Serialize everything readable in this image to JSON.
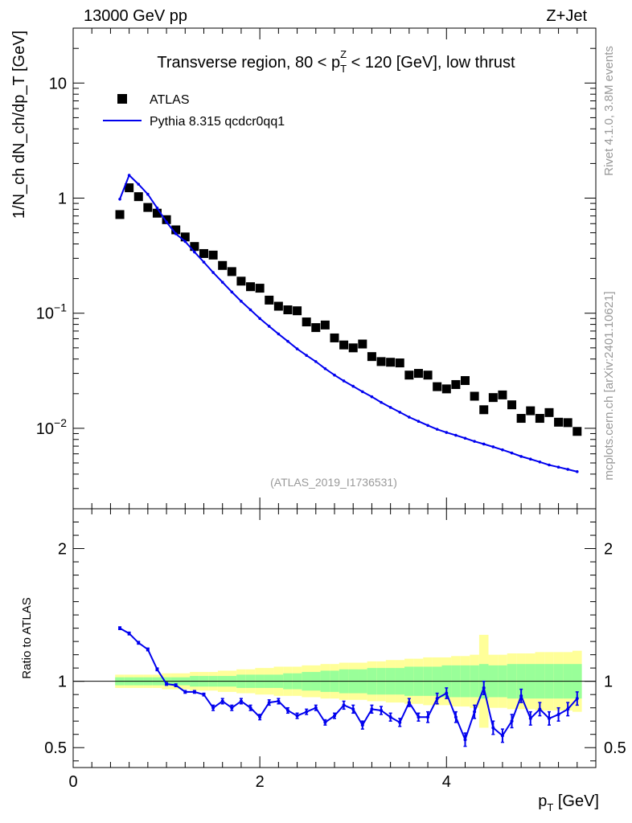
{
  "header": {
    "energy": "13000 GeV pp",
    "process": "Z+Jet"
  },
  "side_labels": {
    "rivet": "Rivet 4.1.0,  3.8M events",
    "mcplots": "mcplots.cern.ch [arXiv:2401.10621]"
  },
  "colors": {
    "data": "#000000",
    "mc": "#0000ee",
    "band_inner": "#99ff99",
    "band_outer": "#ffff99",
    "watermark": "#999999"
  },
  "chart_data": [
    {
      "type": "scatter",
      "panel": "main",
      "title": "Transverse region, 80 < p_T^Z < 120 [GeV], low thrust",
      "title_parts": {
        "pre": "Transverse region, 80 < p",
        "sub": "T",
        "sup": "Z",
        "post": " < 120 [GeV], low thrust"
      },
      "watermark": "(ATLAS_2019_I1736531)",
      "ylabel": "1/N_ch dN_ch/dp_T [GeV]",
      "yscale": "log",
      "ylim": [
        0.002,
        30
      ],
      "xlim": [
        0,
        5.6
      ],
      "y_ticks": [
        {
          "value": 0.01,
          "base": "10",
          "exp": "−2"
        },
        {
          "value": 0.1,
          "base": "10",
          "exp": "−1"
        },
        {
          "value": 1,
          "label": "1"
        },
        {
          "value": 10,
          "label": "10"
        }
      ],
      "legend": {
        "placement": "top-left",
        "entries": [
          "ATLAS",
          "Pythia 8.315 qcdcr0qq1"
        ]
      },
      "x": [
        0.5,
        0.6,
        0.7,
        0.8,
        0.9,
        1.0,
        1.1,
        1.2,
        1.3,
        1.4,
        1.5,
        1.6,
        1.7,
        1.8,
        1.9,
        2.0,
        2.1,
        2.2,
        2.3,
        2.4,
        2.5,
        2.6,
        2.7,
        2.8,
        2.9,
        3.0,
        3.1,
        3.2,
        3.3,
        3.4,
        3.5,
        3.6,
        3.7,
        3.8,
        3.9,
        4.0,
        4.1,
        4.2,
        4.3,
        4.4,
        4.5,
        4.6,
        4.7,
        4.8,
        4.9,
        5.0,
        5.1,
        5.2,
        5.3,
        5.4
      ],
      "series": [
        {
          "name": "ATLAS",
          "style": "markers",
          "values": [
            0.72,
            1.23,
            1.03,
            0.83,
            0.74,
            0.65,
            0.53,
            0.46,
            0.38,
            0.33,
            0.32,
            0.26,
            0.23,
            0.19,
            0.17,
            0.165,
            0.13,
            0.115,
            0.107,
            0.105,
            0.084,
            0.075,
            0.079,
            0.061,
            0.053,
            0.05,
            0.054,
            0.042,
            0.038,
            0.0375,
            0.037,
            0.029,
            0.03,
            0.029,
            0.023,
            0.022,
            0.024,
            0.026,
            0.019,
            0.0145,
            0.0185,
            0.0195,
            0.016,
            0.0122,
            0.0142,
            0.0122,
            0.0137,
            0.0113,
            0.0112,
            0.0094
          ]
        },
        {
          "name": "Pythia 8.315 qcdcr0qq1",
          "style": "line",
          "values": [
            0.98,
            1.58,
            1.32,
            1.08,
            0.82,
            0.62,
            0.49,
            0.42,
            0.34,
            0.278,
            0.226,
            0.186,
            0.153,
            0.127,
            0.107,
            0.09,
            0.077,
            0.066,
            0.057,
            0.049,
            0.043,
            0.038,
            0.033,
            0.029,
            0.0258,
            0.0232,
            0.0208,
            0.0188,
            0.0168,
            0.0152,
            0.0138,
            0.0125,
            0.0115,
            0.0106,
            0.0098,
            0.0092,
            0.0087,
            0.0082,
            0.0077,
            0.0073,
            0.0069,
            0.0065,
            0.0061,
            0.0057,
            0.0054,
            0.0051,
            0.0048,
            0.0046,
            0.0044,
            0.0042
          ]
        }
      ]
    },
    {
      "type": "line",
      "panel": "ratio",
      "ylabel": "Ratio to ATLAS",
      "xlabel": "p_T [GeV]",
      "xlabel_parts": {
        "main": "p",
        "sub": "T",
        "unit": " [GeV]"
      },
      "ylim": [
        0.35,
        2.3
      ],
      "xlim": [
        0,
        5.6
      ],
      "x_ticks": [
        0,
        2,
        4
      ],
      "x_tick_labels": [
        "0",
        "2",
        "4"
      ],
      "y_ticks": [
        0.5,
        1,
        2
      ],
      "y_tick_labels": [
        "0.5",
        "1",
        "2"
      ],
      "reference_line": 1,
      "x": [
        0.5,
        0.6,
        0.7,
        0.8,
        0.9,
        1.0,
        1.1,
        1.2,
        1.3,
        1.4,
        1.5,
        1.6,
        1.7,
        1.8,
        1.9,
        2.0,
        2.1,
        2.2,
        2.3,
        2.4,
        2.5,
        2.6,
        2.7,
        2.8,
        2.9,
        3.0,
        3.1,
        3.2,
        3.3,
        3.4,
        3.5,
        3.6,
        3.7,
        3.8,
        3.9,
        4.0,
        4.1,
        4.2,
        4.3,
        4.4,
        4.5,
        4.6,
        4.7,
        4.8,
        4.9,
        5.0,
        5.1,
        5.2,
        5.3,
        5.4
      ],
      "ratio": [
        1.4,
        1.36,
        1.29,
        1.24,
        1.09,
        0.98,
        0.97,
        0.92,
        0.92,
        0.9,
        0.8,
        0.85,
        0.8,
        0.85,
        0.8,
        0.73,
        0.84,
        0.85,
        0.78,
        0.74,
        0.77,
        0.8,
        0.69,
        0.74,
        0.82,
        0.79,
        0.67,
        0.79,
        0.78,
        0.73,
        0.69,
        0.84,
        0.73,
        0.73,
        0.87,
        0.91,
        0.73,
        0.56,
        0.77,
        0.95,
        0.65,
        0.59,
        0.7,
        0.89,
        0.72,
        0.79,
        0.72,
        0.75,
        0.79,
        0.87
      ],
      "ratio_err": [
        0.01,
        0.01,
        0.01,
        0.01,
        0.01,
        0.01,
        0.01,
        0.01,
        0.01,
        0.01,
        0.02,
        0.02,
        0.02,
        0.02,
        0.02,
        0.02,
        0.02,
        0.02,
        0.02,
        0.02,
        0.02,
        0.02,
        0.02,
        0.02,
        0.03,
        0.03,
        0.03,
        0.03,
        0.03,
        0.03,
        0.03,
        0.03,
        0.03,
        0.04,
        0.04,
        0.04,
        0.04,
        0.05,
        0.05,
        0.05,
        0.05,
        0.05,
        0.05,
        0.05,
        0.05,
        0.05,
        0.05,
        0.05,
        0.05,
        0.05
      ],
      "band_inner": [
        0.03,
        0.03,
        0.03,
        0.03,
        0.03,
        0.03,
        0.03,
        0.03,
        0.04,
        0.04,
        0.04,
        0.04,
        0.04,
        0.05,
        0.05,
        0.05,
        0.05,
        0.05,
        0.06,
        0.06,
        0.07,
        0.07,
        0.08,
        0.08,
        0.09,
        0.09,
        0.09,
        0.1,
        0.1,
        0.1,
        0.1,
        0.11,
        0.11,
        0.11,
        0.11,
        0.12,
        0.12,
        0.12,
        0.12,
        0.13,
        0.12,
        0.12,
        0.13,
        0.13,
        0.13,
        0.13,
        0.13,
        0.13,
        0.13,
        0.13
      ],
      "band_outer": [
        0.05,
        0.05,
        0.05,
        0.05,
        0.05,
        0.06,
        0.06,
        0.06,
        0.07,
        0.07,
        0.07,
        0.08,
        0.08,
        0.09,
        0.09,
        0.1,
        0.1,
        0.11,
        0.11,
        0.11,
        0.12,
        0.12,
        0.13,
        0.13,
        0.14,
        0.14,
        0.14,
        0.15,
        0.15,
        0.16,
        0.16,
        0.17,
        0.17,
        0.18,
        0.18,
        0.18,
        0.19,
        0.19,
        0.2,
        0.35,
        0.2,
        0.2,
        0.21,
        0.21,
        0.21,
        0.22,
        0.22,
        0.22,
        0.22,
        0.23
      ]
    }
  ]
}
